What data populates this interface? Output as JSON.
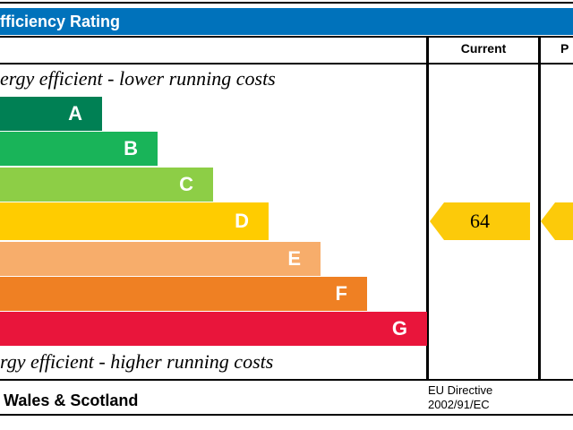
{
  "title": "fficiency Rating",
  "columns": {
    "current": "Current",
    "potential": "P"
  },
  "top_note": "ergy efficient - lower running costs",
  "bottom_note": "rgy efficient - higher running costs",
  "footer": {
    "region": "Wales & Scotland",
    "directive_line1": "EU Directive",
    "directive_line2": "2002/91/EC"
  },
  "chart_data": {
    "type": "bar",
    "categories": [
      "A",
      "B",
      "C",
      "D",
      "E",
      "F",
      "G"
    ],
    "colors": [
      "#008054",
      "#19b459",
      "#8dce46",
      "#ffcc00",
      "#f7ad6b",
      "#ef8023",
      "#e9153b"
    ],
    "current": {
      "value": "64",
      "band": "D",
      "color": "#fcca0a"
    },
    "potential": {
      "band": "D",
      "color": "#fcca0a"
    }
  }
}
